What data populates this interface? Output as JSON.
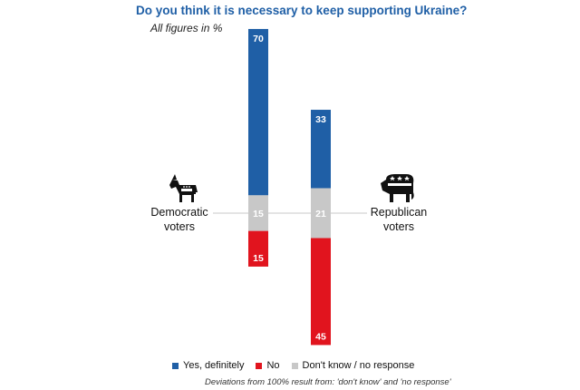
{
  "chart_data": {
    "type": "bar",
    "title": "Do you think it is necessary to keep supporting Ukraine?",
    "subtitle": "All figures in %",
    "categories": [
      "Democratic voters",
      "Republican voters"
    ],
    "category_label_lines": [
      [
        "Democratic",
        "voters"
      ],
      [
        "Republican",
        "voters"
      ]
    ],
    "series": [
      {
        "name": "Yes, definitely",
        "values": [
          70,
          33
        ],
        "color": "#1f5fa6"
      },
      {
        "name": "Don't know / no response",
        "values": [
          15,
          21
        ],
        "color": "#c8c8c8"
      },
      {
        "name": "No",
        "values": [
          15,
          45
        ],
        "color": "#e1141e"
      }
    ],
    "legend": [
      {
        "label": "Yes, definitely",
        "color": "#1f5fa6"
      },
      {
        "label": "No",
        "color": "#e1141e"
      },
      {
        "label": "Don't know / no response",
        "color": "#c8c8c8"
      }
    ],
    "legend_position": "bottom",
    "footnote": "Deviations from 100% result from: 'don't know' and 'no response'",
    "grid": false,
    "stack_layout": "diverging: 'Yes' above, 'No' below, neutral band centered",
    "icons": [
      "donkey-icon",
      "elephant-icon"
    ]
  }
}
